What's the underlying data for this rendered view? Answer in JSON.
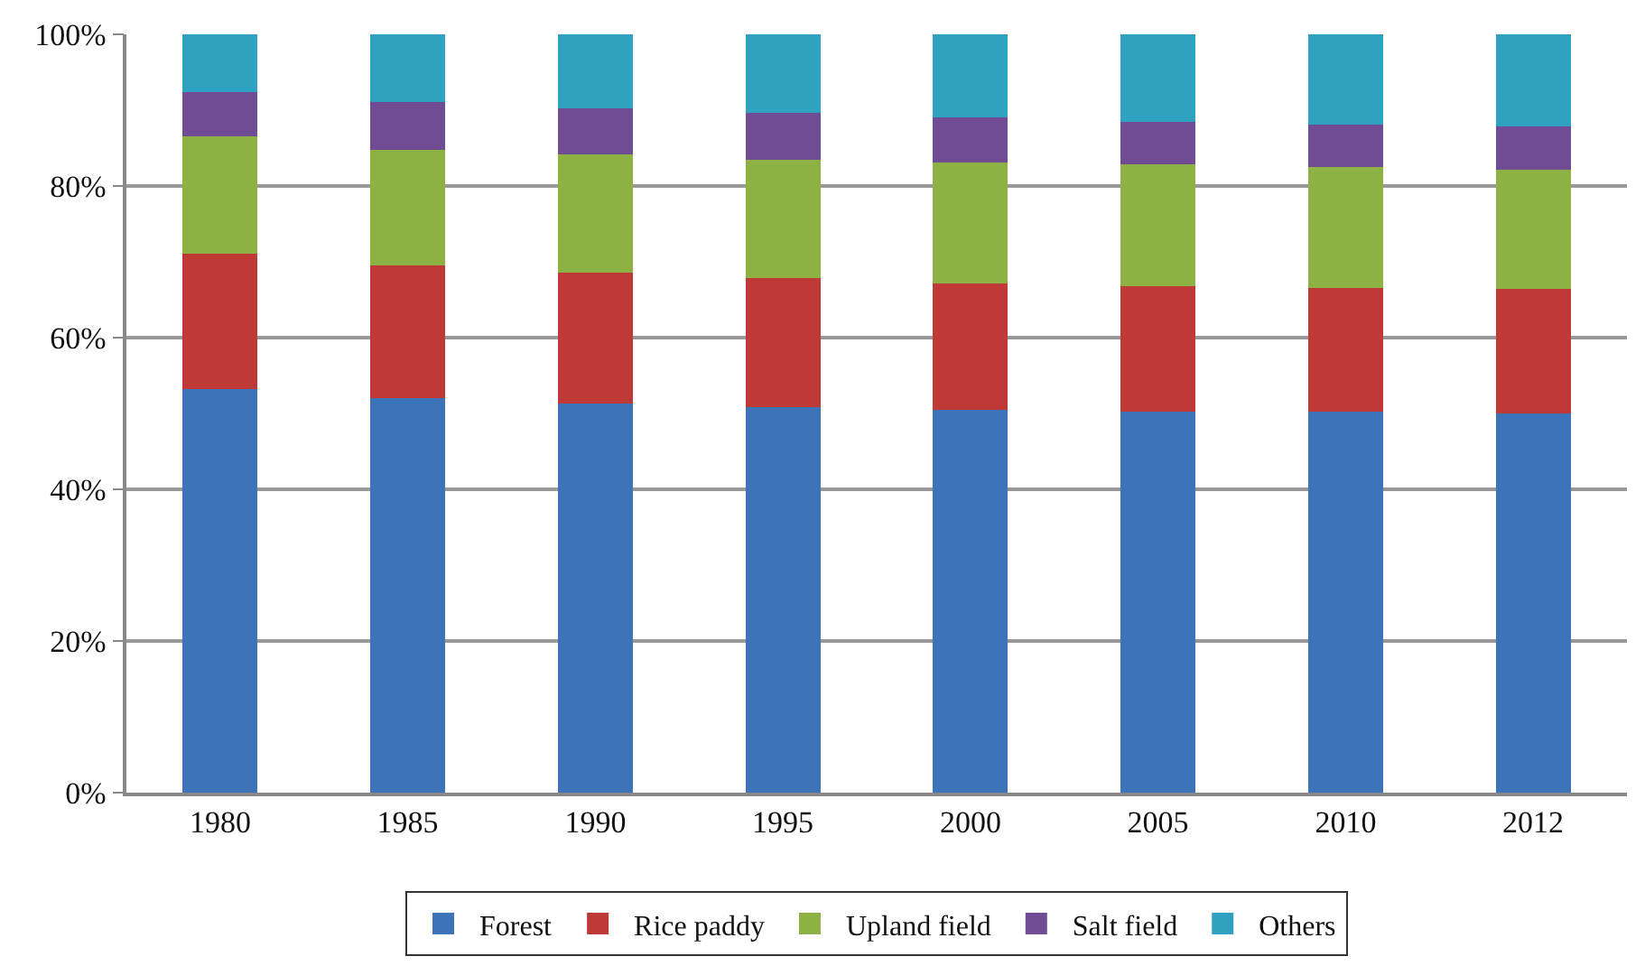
{
  "chart_data": {
    "type": "bar",
    "stacked": true,
    "categories": [
      "1980",
      "1985",
      "1990",
      "1995",
      "2000",
      "2005",
      "2010",
      "2012"
    ],
    "series": [
      {
        "name": "Forest",
        "color": "#3d73b9",
        "values": [
          53.2,
          52.0,
          51.3,
          50.8,
          50.5,
          50.2,
          50.2,
          50.0
        ]
      },
      {
        "name": "Rice paddy",
        "color": "#bf3a36",
        "values": [
          17.9,
          17.5,
          17.3,
          17.1,
          16.7,
          16.6,
          16.3,
          16.4
        ]
      },
      {
        "name": "Upland field",
        "color": "#8db143",
        "values": [
          15.5,
          15.3,
          15.6,
          15.6,
          15.9,
          16.0,
          16.0,
          15.7
        ]
      },
      {
        "name": "Salt field",
        "color": "#6f4c94",
        "values": [
          5.8,
          6.3,
          6.0,
          6.2,
          6.0,
          5.7,
          5.6,
          5.7
        ]
      },
      {
        "name": "Others",
        "color": "#2fa2c2",
        "values": [
          7.6,
          8.9,
          9.8,
          10.3,
          10.9,
          11.5,
          11.9,
          12.2
        ]
      }
    ],
    "ylim": [
      0,
      100
    ],
    "yticks": [
      {
        "value": 0,
        "label": "0%"
      },
      {
        "value": 20,
        "label": "20%"
      },
      {
        "value": 40,
        "label": "40%"
      },
      {
        "value": 60,
        "label": "60%"
      },
      {
        "value": 80,
        "label": "80%"
      },
      {
        "value": 100,
        "label": "100%"
      }
    ],
    "grid": "y",
    "legend": "bottom"
  }
}
